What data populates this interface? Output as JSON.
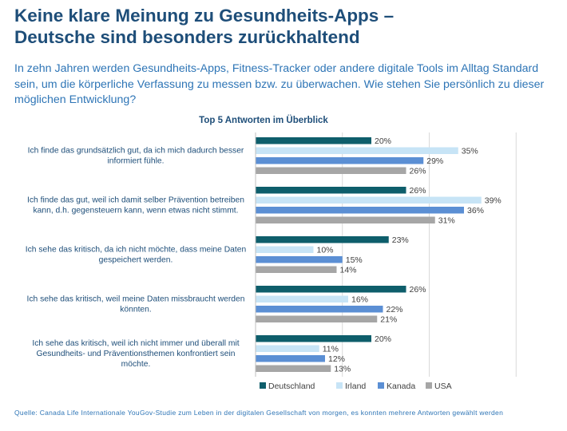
{
  "header": {
    "title_line1": "Keine klare Meinung zu Gesundheits-Apps –",
    "title_line2": "Deutsche sind besonders zurückhaltend",
    "question": "In zehn Jahren werden Gesundheits-Apps, Fitness-Tracker oder andere digitale Tools im Alltag Standard sein, um die körperliche Verfassung zu messen bzw. zu überwachen. Wie stehen Sie persönlich zu dieser möglichen Entwicklung?"
  },
  "chart_data": {
    "type": "bar",
    "orientation": "horizontal",
    "title": "Top 5 Antworten im Überblick",
    "categories": [
      [
        "Ich finde das grundsätzlich gut, da ich mich dadurch besser",
        "informiert fühle."
      ],
      [
        "Ich finde das gut, weil ich damit selber Prävention betreiben",
        "kann, d.h. gegensteuern kann, wenn etwas nicht stimmt."
      ],
      [
        "Ich sehe das kritisch, da ich nicht möchte, dass meine Daten",
        "gespeichert werden."
      ],
      [
        "Ich sehe das kritisch, weil meine Daten missbraucht werden",
        "könnten."
      ],
      [
        "Ich sehe das kritisch, weil ich nicht immer und überall mit",
        "Gesundheits- und Präventionsthemen konfrontiert sein",
        "möchte."
      ]
    ],
    "series": [
      {
        "name": "Deutschland",
        "color": "#0e5e6b",
        "values": [
          20,
          26,
          23,
          26,
          20
        ],
        "labels": [
          "20%",
          "26%",
          "23%",
          "26%",
          "20%"
        ]
      },
      {
        "name": "Irland",
        "color": "#c7e4f6",
        "values": [
          35,
          39,
          10,
          16,
          11
        ],
        "labels": [
          "35%",
          "39%",
          "10%",
          "16%",
          "11%"
        ]
      },
      {
        "name": "Kanada",
        "color": "#5b8fd4",
        "values": [
          29,
          36,
          15,
          22,
          12
        ],
        "labels": [
          "29%",
          "36%",
          "15%",
          "22%",
          "12%"
        ]
      },
      {
        "name": "USA",
        "color": "#a6a6a6",
        "values": [
          26,
          31,
          14,
          21,
          13
        ],
        "labels": [
          "26%",
          "31%",
          "14%",
          "21%",
          "13%"
        ]
      }
    ],
    "xlim": [
      0,
      45
    ],
    "value_unit": "%",
    "grid": true,
    "legend_position": "bottom"
  },
  "footer": {
    "source": "Quelle: Canada Life Internationale YouGov-Studie zum Leben in der digitalen Gesellschaft von morgen, es konnten mehrere Antworten gewählt werden"
  }
}
